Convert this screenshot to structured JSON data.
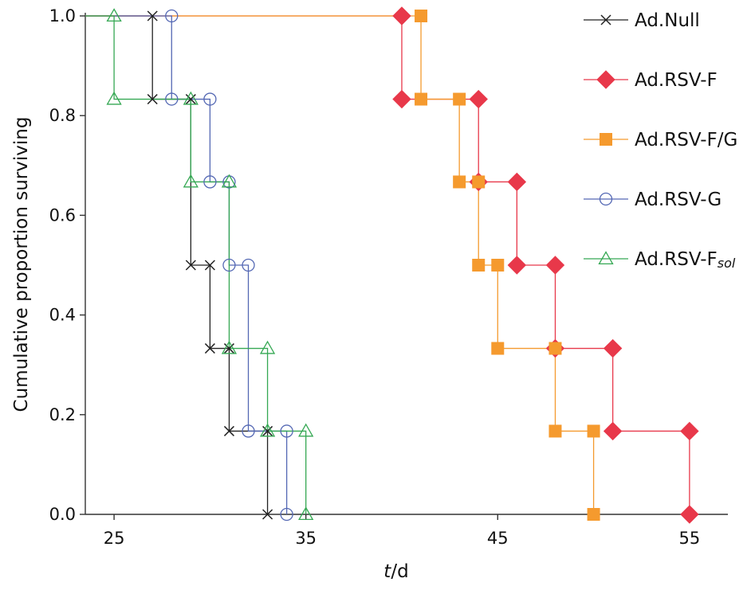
{
  "chart_data": {
    "type": "line",
    "step": "post",
    "title": "",
    "xlabel_italic": "t",
    "xlabel_rest": "/d",
    "ylabel": "Cumulative proportion surviving",
    "xlim": [
      23.5,
      57
    ],
    "ylim": [
      0,
      1.0
    ],
    "xticks": [
      25,
      35,
      45,
      55
    ],
    "yticks": [
      0.0,
      0.2,
      0.4,
      0.6,
      0.8,
      1.0
    ],
    "xtick_labels": [
      "25",
      "35",
      "45",
      "55"
    ],
    "ytick_labels": [
      "0.0",
      "0.2",
      "0.4",
      "0.6",
      "0.8",
      "1.0"
    ],
    "grid": false,
    "legend_position": "top-right",
    "series": [
      {
        "name": "Ad.Null",
        "marker": "cross",
        "color": "#222222",
        "start_x": 23.5,
        "points": [
          [
            27,
            1.0
          ],
          [
            27,
            0.833
          ],
          [
            29,
            0.833
          ],
          [
            29,
            0.5
          ],
          [
            30,
            0.5
          ],
          [
            30,
            0.333
          ],
          [
            31,
            0.333
          ],
          [
            31,
            0.167
          ],
          [
            33,
            0.167
          ],
          [
            33,
            0.0
          ]
        ]
      },
      {
        "name": "Ad.RSV-F",
        "marker": "diamond",
        "color": "#e8384a",
        "start_x": 23.5,
        "points": [
          [
            40,
            1.0
          ],
          [
            40,
            0.833
          ],
          [
            44,
            0.833
          ],
          [
            44,
            0.667
          ],
          [
            46,
            0.667
          ],
          [
            46,
            0.5
          ],
          [
            48,
            0.5
          ],
          [
            48,
            0.333
          ],
          [
            51,
            0.333
          ],
          [
            51,
            0.167
          ],
          [
            55,
            0.167
          ],
          [
            55,
            0.0
          ]
        ]
      },
      {
        "name": "Ad.RSV-F/G",
        "marker": "square",
        "color": "#f59a2e",
        "start_x": 23.5,
        "points": [
          [
            41,
            1.0
          ],
          [
            41,
            0.833
          ],
          [
            43,
            0.833
          ],
          [
            43,
            0.667
          ],
          [
            44,
            0.667
          ],
          [
            44,
            0.5
          ],
          [
            45,
            0.5
          ],
          [
            45,
            0.333
          ],
          [
            48,
            0.333
          ],
          [
            48,
            0.167
          ],
          [
            50,
            0.167
          ],
          [
            50,
            0.0
          ]
        ]
      },
      {
        "name": "Ad.RSV-G",
        "marker": "circle",
        "color": "#5468b4",
        "start_x": 23.5,
        "points": [
          [
            28,
            1.0
          ],
          [
            28,
            0.833
          ],
          [
            30,
            0.833
          ],
          [
            30,
            0.667
          ],
          [
            31,
            0.667
          ],
          [
            31,
            0.5
          ],
          [
            32,
            0.5
          ],
          [
            32,
            0.167
          ],
          [
            34,
            0.167
          ],
          [
            34,
            0.0
          ]
        ]
      },
      {
        "name": "Ad.RSV-F",
        "name_subscript": "sol",
        "marker": "triangle",
        "color": "#35a853",
        "start_x": 23.5,
        "points": [
          [
            25,
            1.0
          ],
          [
            25,
            0.833
          ],
          [
            29,
            0.833
          ],
          [
            29,
            0.667
          ],
          [
            31,
            0.667
          ],
          [
            31,
            0.333
          ],
          [
            33,
            0.333
          ],
          [
            33,
            0.167
          ],
          [
            35,
            0.167
          ],
          [
            35,
            0.0
          ]
        ]
      }
    ]
  }
}
